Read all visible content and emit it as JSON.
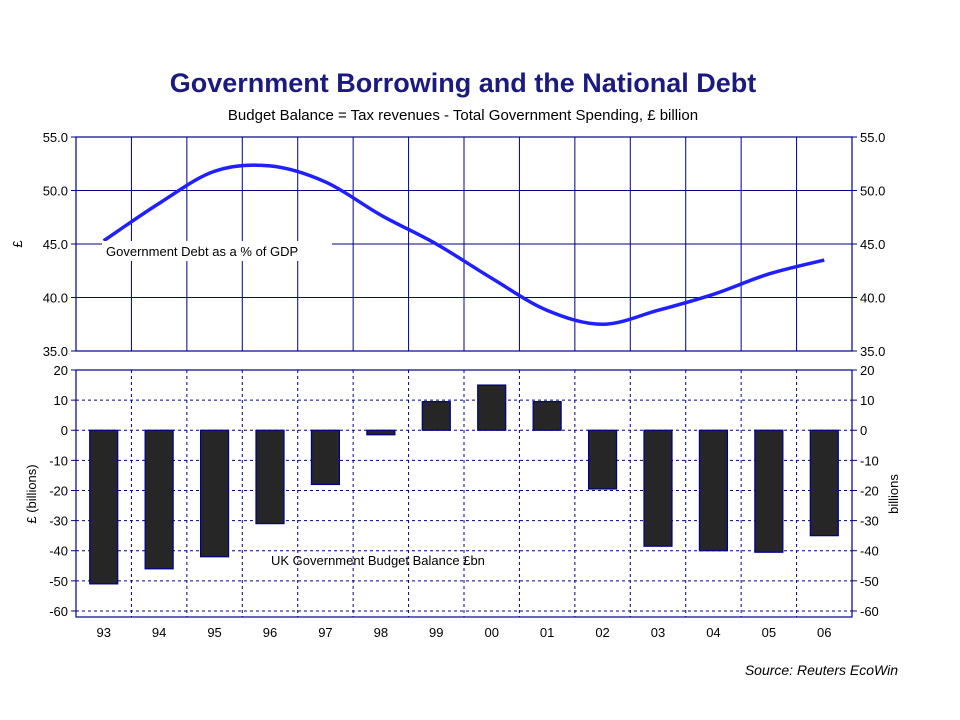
{
  "title": "Government Borrowing and the National Debt",
  "subtitle": "Budget Balance = Tax revenues - Total Government Spending, £ billion",
  "source": "Source: Reuters EcoWin",
  "colors": {
    "title": "#1a1a80",
    "axis": "#00008b",
    "line": "#1f1fff",
    "bar": "#262626",
    "bar_edge": "#00008b"
  },
  "chart_data": [
    {
      "type": "line",
      "title": "",
      "series": [
        {
          "name": "Government Debt as a % of GDP",
          "x": [
            1993,
            1994,
            1995,
            1996,
            1997,
            1998,
            1999,
            2000,
            2001,
            2002,
            2003,
            2004,
            2005,
            2006
          ],
          "values": [
            45.3,
            48.8,
            51.8,
            52.3,
            50.8,
            47.7,
            45.0,
            41.8,
            38.8,
            37.5,
            38.8,
            40.3,
            42.2,
            43.5
          ]
        }
      ],
      "annotation": "Government Debt as a % of GDP",
      "ylabel_left": "£",
      "ylabel_right": "",
      "ylim": [
        35.0,
        55.0
      ],
      "yticks": [
        "55.0",
        "50.0",
        "45.0",
        "40.0",
        "35.0"
      ],
      "grid": true
    },
    {
      "type": "bar",
      "title": "",
      "categories": [
        "93",
        "94",
        "95",
        "96",
        "97",
        "98",
        "99",
        "00",
        "01",
        "02",
        "03",
        "04",
        "05",
        "06"
      ],
      "series": [
        {
          "name": "UK Government Budget Balance £bn",
          "values": [
            -51,
            -46,
            -42,
            -31,
            -18,
            -1.5,
            9.5,
            15,
            9.5,
            -19.5,
            -38.5,
            -40,
            -40.5,
            -35
          ]
        }
      ],
      "annotation": "UK Government Budget Balance £bn",
      "ylabel_left": "£ (billions)",
      "ylabel_right": "billions",
      "ylim": [
        -62,
        20
      ],
      "yticks": [
        "20",
        "10",
        "0",
        "-10",
        "-20",
        "-30",
        "-40",
        "-50",
        "-60"
      ],
      "grid": true
    }
  ]
}
